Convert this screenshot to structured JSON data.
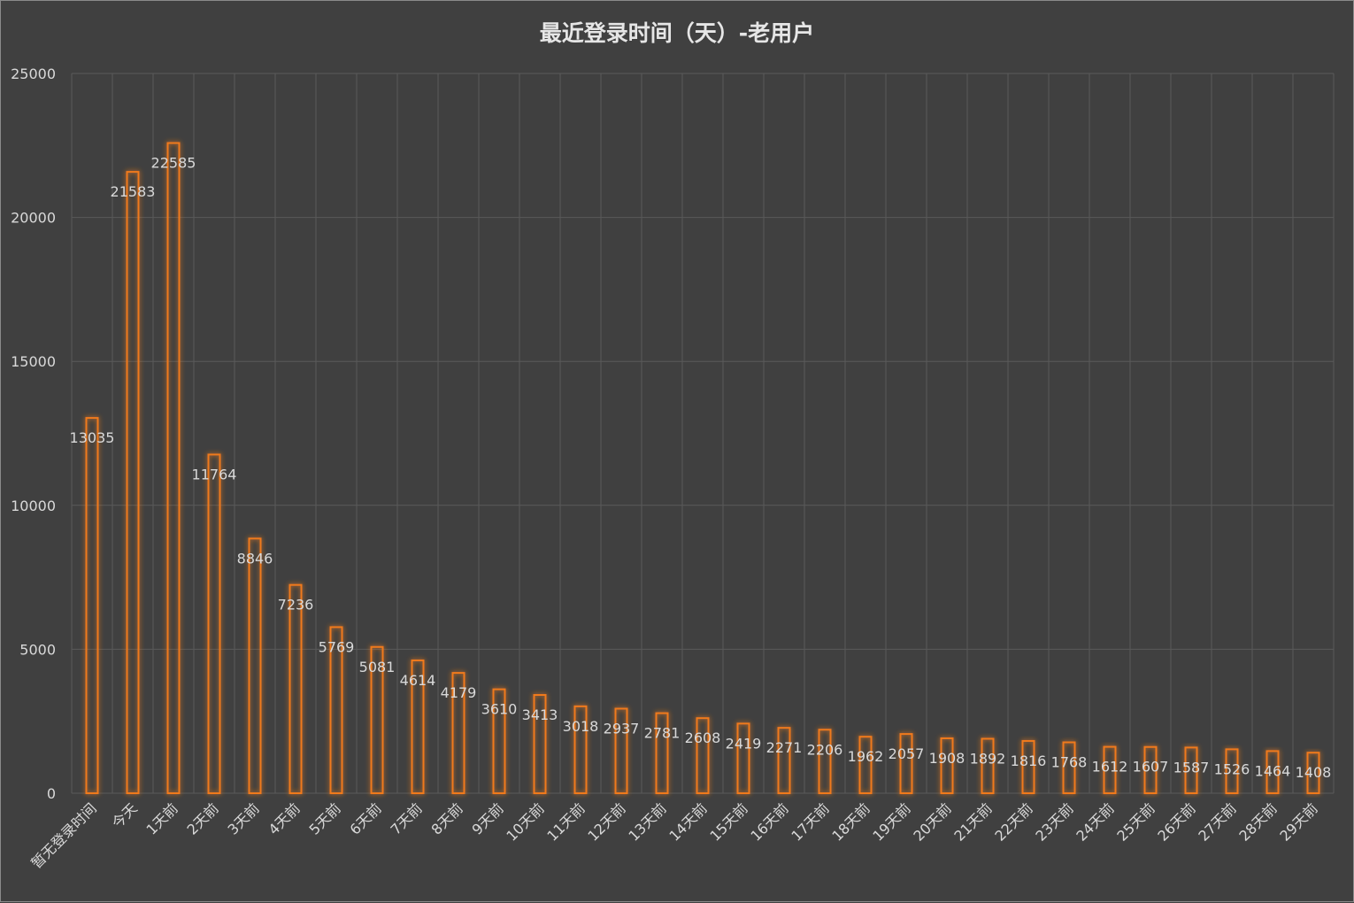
{
  "chart_data": {
    "type": "bar",
    "title": "最近登录时间（天）-老用户",
    "xlabel": "",
    "ylabel": "",
    "ylim": [
      0,
      25000
    ],
    "yticks": [
      0,
      5000,
      10000,
      15000,
      20000,
      25000
    ],
    "grid": true,
    "legend": "none",
    "categories": [
      "暂无登录时间",
      "今天",
      "1天前",
      "2天前",
      "3天前",
      "4天前",
      "5天前",
      "6天前",
      "7天前",
      "8天前",
      "9天前",
      "10天前",
      "11天前",
      "12天前",
      "13天前",
      "14天前",
      "15天前",
      "16天前",
      "17天前",
      "18天前",
      "19天前",
      "20天前",
      "21天前",
      "22天前",
      "23天前",
      "24天前",
      "25天前",
      "26天前",
      "27天前",
      "28天前",
      "29天前"
    ],
    "values": [
      13035,
      21583,
      22585,
      11764,
      8846,
      7236,
      5769,
      5081,
      4614,
      4179,
      3610,
      3413,
      3018,
      2937,
      2781,
      2608,
      2419,
      2271,
      2206,
      1962,
      2057,
      1908,
      1892,
      1816,
      1768,
      1612,
      1607,
      1587,
      1526,
      1464,
      1408
    ],
    "colors": {
      "background": "#404040",
      "bar_outline": "#f07a1e",
      "bar_glow": "#b85a14",
      "grid": "#5a5a5a",
      "text": "#d9d9d9",
      "title": "#e6e6e6"
    }
  }
}
